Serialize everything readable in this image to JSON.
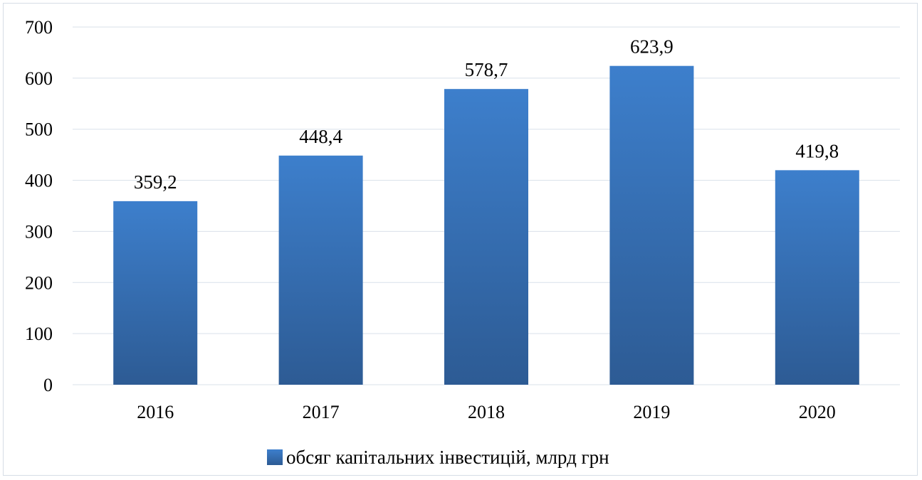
{
  "chart_data": {
    "type": "bar",
    "categories": [
      "2016",
      "2017",
      "2018",
      "2019",
      "2020"
    ],
    "series": [
      {
        "name": "обсяг капітальних інвестицій, млрд грн",
        "values": [
          359.2,
          448.4,
          578.7,
          623.9,
          419.8
        ],
        "labels": [
          "359,2",
          "448,4",
          "578,7",
          "623,9",
          "419,8"
        ]
      }
    ],
    "yticks": [
      "0",
      "100",
      "200",
      "300",
      "400",
      "500",
      "600",
      "700"
    ],
    "ylim": [
      0,
      700
    ],
    "grid": true,
    "legend_position": "bottom",
    "colors": {
      "bar_top": "#3d7fcc",
      "bar_bottom": "#2d5b94",
      "grid": "#d9e1ea"
    }
  }
}
